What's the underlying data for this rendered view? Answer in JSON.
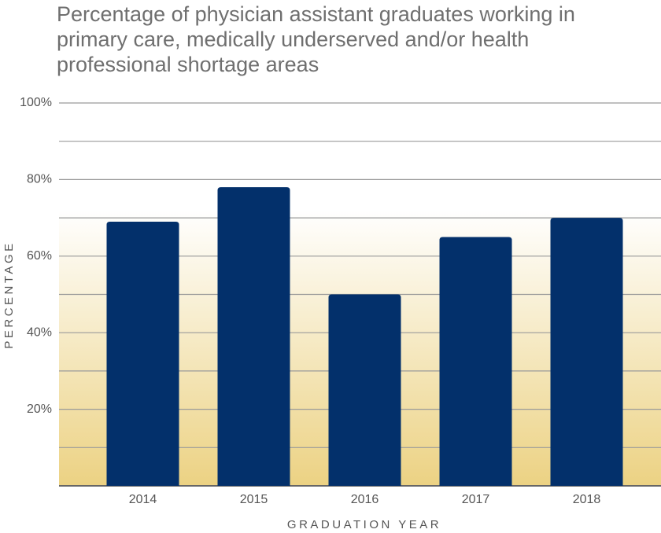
{
  "chart_data": {
    "type": "bar",
    "title": "Percentage of physician assistant graduates working in primary care, medically underserved and/or health professional shortage areas",
    "x_label": "GRADUATION YEAR",
    "y_label": "PERCENTAGE",
    "categories": [
      "2014",
      "2015",
      "2016",
      "2017",
      "2018"
    ],
    "values": [
      69,
      78,
      50,
      65,
      70
    ],
    "color": "#03306b",
    "ylim": [
      0,
      100
    ],
    "yticks": [
      {
        "value": 20,
        "label": "20%"
      },
      {
        "value": 40,
        "label": "40%"
      },
      {
        "value": 60,
        "label": "60%"
      },
      {
        "value": 80,
        "label": "80%"
      },
      {
        "value": 100,
        "label": "100%"
      }
    ],
    "minor_yticks": [
      0,
      10,
      30,
      50,
      70,
      90
    ],
    "grid": true
  }
}
